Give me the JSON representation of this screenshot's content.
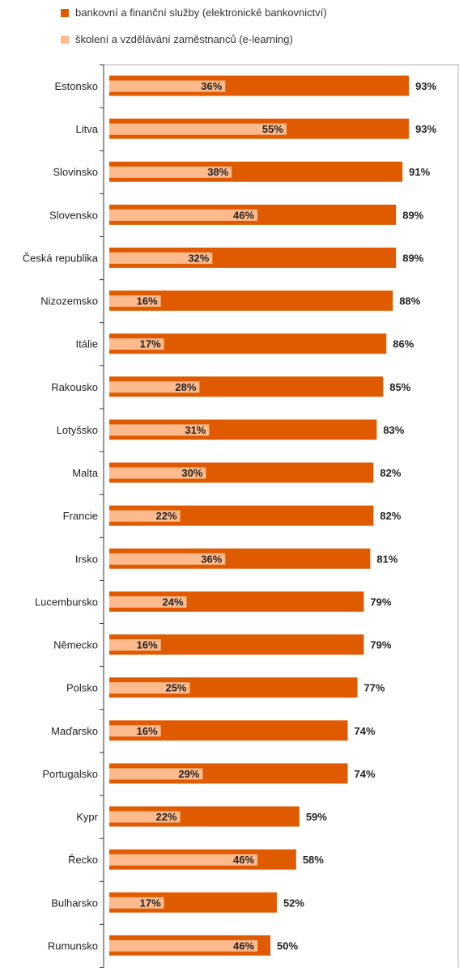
{
  "legend": {
    "series_a": "bankovní a finanční služby (elektronické bankovnictví)",
    "series_b": "školení a vzdělávání zaměstnanců (e-learning)"
  },
  "colors": {
    "series_a": "#E05A00",
    "series_b": "#FDBA8C",
    "axis": "#333333",
    "frame": "#B3B3B3"
  },
  "chart_data": {
    "type": "bar",
    "orientation": "horizontal",
    "categories": [
      "Estonsko",
      "Litva",
      "Slovinsko",
      "Slovensko",
      "Česká republika",
      "Nizozemsko",
      "Itálie",
      "Rakousko",
      "Lotyšsko",
      "Malta",
      "Francie",
      "Irsko",
      "Lucembursko",
      "Německo",
      "Polsko",
      "Maďarsko",
      "Portugalsko",
      "Kypr",
      "Řecko",
      "Bulharsko",
      "Rumunsko"
    ],
    "series": [
      {
        "name": "bankovní a finanční služby (elektronické bankovnictví)",
        "values": [
          93,
          93,
          91,
          89,
          89,
          88,
          86,
          85,
          83,
          82,
          82,
          81,
          79,
          79,
          77,
          74,
          74,
          59,
          58,
          52,
          50
        ]
      },
      {
        "name": "školení a vzdělávání zaměstnanců (e-learning)",
        "values": [
          36,
          55,
          38,
          46,
          32,
          16,
          17,
          28,
          31,
          30,
          22,
          36,
          24,
          16,
          25,
          16,
          29,
          22,
          46,
          17,
          46
        ]
      }
    ],
    "value_suffix": "%",
    "xlim": [
      0,
      100
    ],
    "legend_position": "top",
    "grid": false
  }
}
